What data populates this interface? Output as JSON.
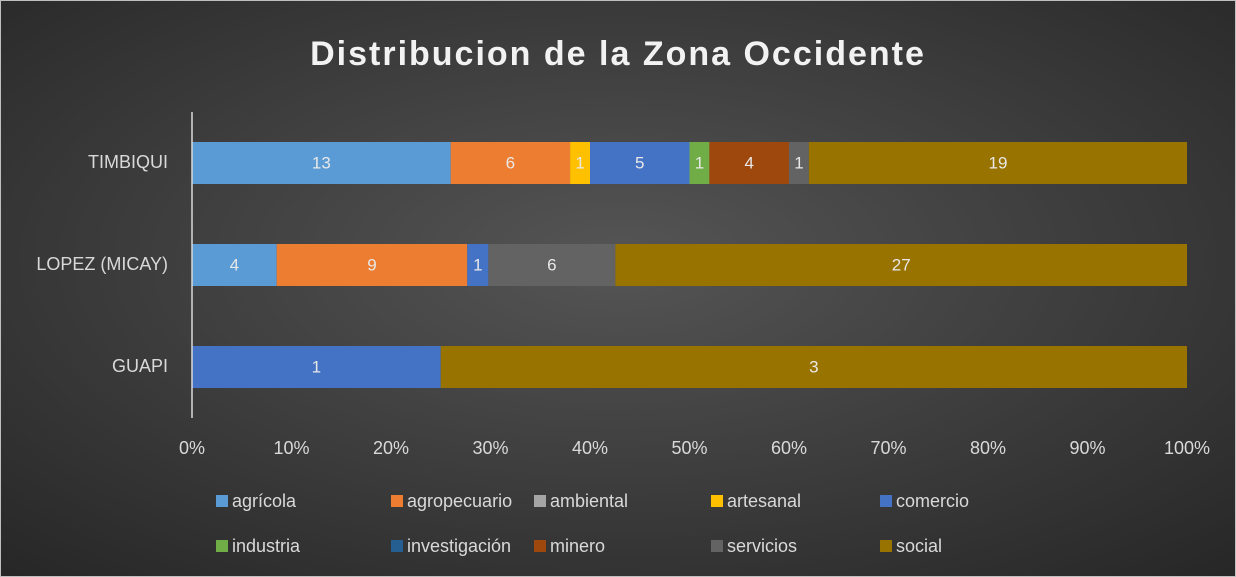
{
  "chart_data": {
    "type": "stacked-bar-100",
    "title": "Distribucion de la Zona Occidente",
    "categories": [
      "TIMBIQUI",
      "LOPEZ (MICAY)",
      "GUAPI"
    ],
    "series": [
      {
        "name": "agrícola",
        "color": "#5b9bd5",
        "values": [
          13,
          4,
          0
        ]
      },
      {
        "name": "agropecuario",
        "color": "#ed7d31",
        "values": [
          6,
          9,
          0
        ]
      },
      {
        "name": "ambiental",
        "color": "#a5a5a5",
        "values": [
          0,
          0,
          0
        ]
      },
      {
        "name": "artesanal",
        "color": "#ffc000",
        "values": [
          1,
          0,
          0
        ]
      },
      {
        "name": "comercio",
        "color": "#4472c4",
        "values": [
          5,
          1,
          1
        ]
      },
      {
        "name": "industria",
        "color": "#70ad47",
        "values": [
          1,
          0,
          0
        ]
      },
      {
        "name": "investigación",
        "color": "#255e91",
        "values": [
          0,
          0,
          0
        ]
      },
      {
        "name": "minero",
        "color": "#9e480e",
        "values": [
          4,
          0,
          0
        ]
      },
      {
        "name": "servicios",
        "color": "#636363",
        "values": [
          1,
          6,
          0
        ]
      },
      {
        "name": "social",
        "color": "#997300",
        "values": [
          19,
          27,
          3
        ]
      }
    ],
    "xlim": [
      0,
      100
    ],
    "xticks": [
      {
        "value": 0,
        "label": "0%"
      },
      {
        "value": 10,
        "label": "10%"
      },
      {
        "value": 20,
        "label": "20%"
      },
      {
        "value": 30,
        "label": "30%"
      },
      {
        "value": 40,
        "label": "40%"
      },
      {
        "value": 50,
        "label": "50%"
      },
      {
        "value": 60,
        "label": "60%"
      },
      {
        "value": 70,
        "label": "70%"
      },
      {
        "value": 80,
        "label": "80%"
      },
      {
        "value": 90,
        "label": "90%"
      },
      {
        "value": 100,
        "label": "100%"
      }
    ],
    "legend": "bottom"
  }
}
